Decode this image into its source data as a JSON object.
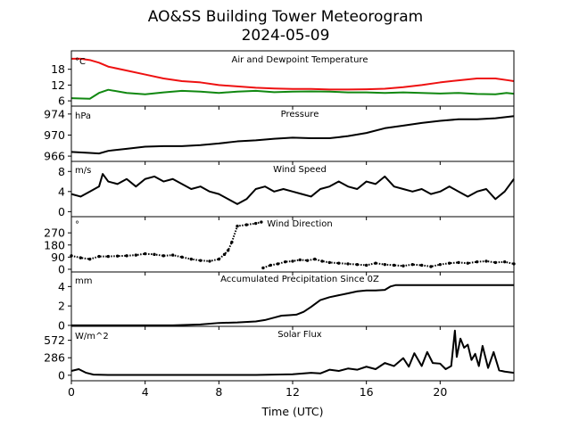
{
  "title_line1": "AO&SS Building Tower Meteorogram",
  "title_line2": "2024-05-09",
  "xlabel": "Time (UTC)",
  "colors": {
    "temp": "#ee1111",
    "dew": "#118811",
    "line": "#000000"
  },
  "chart_data": {
    "type": "line",
    "x_range": [
      0,
      24
    ],
    "x_ticks": [
      0,
      4,
      8,
      12,
      16,
      20
    ],
    "x_tick_labels": [
      "0",
      "4",
      "8",
      "12",
      "16",
      "20"
    ],
    "panels": [
      {
        "id": "temp",
        "title": "Air and Dewpoint Temperature",
        "unit": "°C",
        "ylim": [
          4,
          25
        ],
        "yticks": [
          6,
          12,
          18
        ],
        "ytick_labels": [
          "6",
          "12",
          "18"
        ],
        "series": [
          {
            "color_key": "temp",
            "style": "line",
            "x": [
              0,
              0.5,
              1,
              1.5,
              2,
              3,
              4,
              5,
              6,
              7,
              8,
              9,
              10,
              11,
              12,
              13,
              14,
              15,
              16,
              17,
              18,
              19,
              20,
              21,
              22,
              23,
              23.7,
              24
            ],
            "y": [
              22,
              22,
              21.5,
              20.5,
              19,
              17.5,
              16,
              14.5,
              13.5,
              13,
              12,
              11.5,
              11,
              10.7,
              10.5,
              10.5,
              10.3,
              10.3,
              10.4,
              10.6,
              11.2,
              12,
              13,
              13.8,
              14.5,
              14.5,
              13.8,
              13.5
            ]
          },
          {
            "color_key": "dew",
            "style": "line",
            "x": [
              0,
              1,
              1.5,
              2,
              3,
              4,
              5,
              6,
              7,
              8,
              9,
              10,
              11,
              12,
              13,
              14,
              15,
              16,
              17,
              18,
              19,
              20,
              21,
              22,
              23,
              23.6,
              24
            ],
            "y": [
              7,
              6.8,
              9,
              10.2,
              9,
              8.5,
              9.2,
              9.8,
              9.5,
              9,
              9.5,
              9.8,
              9.3,
              9.5,
              9.6,
              9.5,
              9.2,
              9.2,
              9,
              9.2,
              9,
              8.8,
              9,
              8.6,
              8.5,
              9,
              8.7
            ]
          }
        ]
      },
      {
        "id": "pressure",
        "title": "Pressure",
        "unit": "hPa",
        "ylim": [
          965,
          975.5
        ],
        "yticks": [
          966,
          970,
          974
        ],
        "ytick_labels": [
          "966",
          "970",
          "974"
        ],
        "series": [
          {
            "color_key": "line",
            "style": "line",
            "x": [
              0,
              1,
              1.5,
              2,
              3,
              4,
              5,
              6,
              7,
              8,
              9,
              10,
              11,
              12,
              13,
              14,
              15,
              16,
              17,
              18,
              19,
              20,
              21,
              22,
              23,
              24
            ],
            "y": [
              966.8,
              966.6,
              966.5,
              967,
              967.4,
              967.8,
              967.9,
              967.9,
              968.1,
              968.4,
              968.8,
              969,
              969.3,
              969.5,
              969.4,
              969.4,
              969.8,
              970.4,
              971.3,
              971.8,
              972.3,
              972.7,
              973,
              973,
              973.2,
              973.6
            ]
          }
        ]
      },
      {
        "id": "wind_speed",
        "title": "Wind Speed",
        "unit": "m/s",
        "ylim": [
          -1,
          10
        ],
        "yticks": [
          0,
          4,
          8
        ],
        "ytick_labels": [
          "0",
          "4",
          "8"
        ],
        "series": [
          {
            "color_key": "line",
            "style": "line",
            "x": [
              0,
              0.5,
              1,
              1.5,
              1.7,
              2,
              2.5,
              3,
              3.5,
              4,
              4.5,
              5,
              5.5,
              6,
              6.5,
              7,
              7.5,
              8,
              8.5,
              9,
              9.5,
              10,
              10.5,
              11,
              11.5,
              12,
              12.5,
              13,
              13.5,
              14,
              14.5,
              15,
              15.5,
              16,
              16.5,
              17,
              17.5,
              18,
              18.5,
              19,
              19.5,
              20,
              20.5,
              21,
              21.5,
              22,
              22.5,
              23,
              23.5,
              24
            ],
            "y": [
              3.5,
              3,
              4,
              5,
              7.5,
              6,
              5.5,
              6.5,
              5,
              6.5,
              7,
              6,
              6.5,
              5.5,
              4.5,
              5,
              4,
              3.5,
              2.5,
              1.5,
              2.5,
              4.5,
              5,
              4,
              4.5,
              4,
              3.5,
              3,
              4.5,
              5,
              6,
              5,
              4.5,
              6,
              5.5,
              7,
              5,
              4.5,
              4,
              4.5,
              3.5,
              4,
              5,
              4,
              3,
              4,
              4.5,
              2.5,
              4,
              6.5
            ]
          }
        ]
      },
      {
        "id": "wind_dir",
        "title": "Wind Direction",
        "unit": "°",
        "ylim": [
          -20,
          390
        ],
        "yticks": [
          0,
          90,
          180,
          270
        ],
        "ytick_labels": [
          "0",
          "90",
          "180",
          "270"
        ],
        "series": [
          {
            "color_key": "line",
            "style": "dots",
            "x": [
              0,
              0.5,
              1,
              1.5,
              2,
              2.5,
              3,
              3.5,
              4,
              4.5,
              5,
              5.5,
              6,
              6.5,
              7,
              7.5,
              8,
              8.3,
              8.5,
              8.7,
              9,
              9.5,
              10,
              10.3
            ],
            "y": [
              100,
              85,
              75,
              95,
              95,
              98,
              100,
              105,
              115,
              110,
              100,
              105,
              90,
              75,
              65,
              60,
              75,
              110,
              140,
              200,
              320,
              330,
              340,
              350
            ]
          },
          {
            "color_key": "line",
            "style": "dots",
            "x": [
              10.4,
              10.8,
              11.2,
              11.6,
              12,
              12.4,
              12.8,
              13.2,
              13.6,
              14,
              14.5,
              15,
              15.5,
              16,
              16.5,
              17,
              17.5,
              18,
              18.5,
              19,
              19.5,
              20,
              20.5,
              21,
              21.5,
              22,
              22.5,
              23,
              23.5,
              24
            ],
            "y": [
              10,
              30,
              40,
              55,
              60,
              70,
              65,
              75,
              60,
              50,
              45,
              40,
              35,
              30,
              45,
              35,
              30,
              25,
              35,
              30,
              20,
              35,
              45,
              50,
              45,
              55,
              60,
              50,
              55,
              40
            ]
          }
        ]
      },
      {
        "id": "precip",
        "title": "Accumulated Precipitation Since 0Z",
        "unit": "mm",
        "ylim": [
          -0.1,
          5.5
        ],
        "yticks": [
          0,
          2,
          4
        ],
        "ytick_labels": [
          "0",
          "2",
          "4"
        ],
        "series": [
          {
            "color_key": "line",
            "style": "line",
            "x": [
              0,
              5.5,
              7,
              8,
              9,
              10,
              10.5,
              11,
              11.4,
              11.8,
              12.2,
              12.6,
              13,
              13.5,
              14,
              14.5,
              15,
              15.5,
              16,
              16.5,
              17,
              17.3,
              17.6,
              24
            ],
            "y": [
              0,
              0,
              0.1,
              0.25,
              0.3,
              0.4,
              0.55,
              0.8,
              1,
              1.05,
              1.1,
              1.4,
              1.9,
              2.6,
              2.9,
              3.1,
              3.3,
              3.5,
              3.6,
              3.6,
              3.65,
              4.0,
              4.15,
              4.15
            ]
          }
        ]
      },
      {
        "id": "solar",
        "title": "Solar Flux",
        "unit": "W/m^2",
        "ylim": [
          -90,
          800
        ],
        "yticks": [
          0,
          286,
          572
        ],
        "ytick_labels": [
          "0",
          "286",
          "572"
        ],
        "series": [
          {
            "color_key": "line",
            "style": "line",
            "x": [
              0,
              0.4,
              0.8,
              1.2,
              2,
              4,
              6,
              8,
              10,
              11,
              12,
              13,
              13.5,
              14,
              14.5,
              15,
              15.5,
              16,
              16.5,
              17,
              17.5,
              18,
              18.3,
              18.6,
              19,
              19.3,
              19.6,
              20,
              20.3,
              20.6,
              20.8,
              20.9,
              21.1,
              21.3,
              21.5,
              21.7,
              21.9,
              22.1,
              22.3,
              22.6,
              22.9,
              23.2,
              23.5,
              24
            ],
            "y": [
              70,
              100,
              40,
              10,
              5,
              5,
              5,
              5,
              5,
              10,
              15,
              40,
              30,
              90,
              70,
              110,
              90,
              140,
              100,
              200,
              150,
              280,
              140,
              360,
              150,
              380,
              200,
              190,
              100,
              150,
              730,
              300,
              600,
              450,
              500,
              250,
              350,
              150,
              480,
              120,
              380,
              80,
              60,
              40
            ]
          }
        ]
      }
    ]
  }
}
